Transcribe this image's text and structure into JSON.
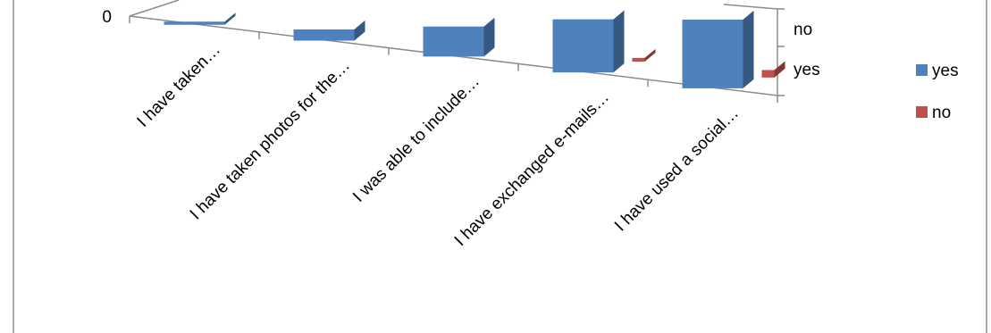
{
  "chart_data": {
    "type": "bar",
    "categories": [
      "I have taken…",
      "I have taken photos for the…",
      "I was able to include…",
      "I have exchanged e-mails…",
      "I have used a social…"
    ],
    "series": [
      {
        "name": "yes",
        "values": [
          0.05,
          0.18,
          0.48,
          0.85,
          1.1
        ],
        "color": "#4F81BD"
      },
      {
        "name": "no",
        "values": [
          0,
          0,
          0,
          0.06,
          0.12
        ],
        "color": "#C0504D"
      }
    ],
    "depth_labels": [
      "no",
      "yes"
    ],
    "y_tick_labels": [
      "0"
    ],
    "legend": [
      {
        "label": "yes",
        "color": "#4F81BD"
      },
      {
        "label": "no",
        "color": "#C0504D"
      }
    ],
    "legend_position": "right",
    "grid": false
  }
}
